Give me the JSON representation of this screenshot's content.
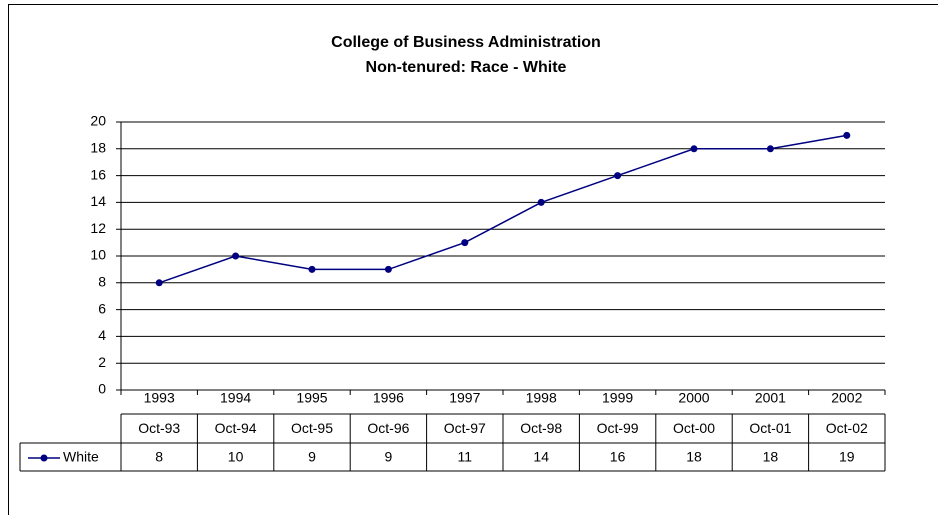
{
  "chart_data": {
    "type": "line",
    "title": "College of Business Administration",
    "subtitle": "Non-tenured: Race - White",
    "categories": [
      "1993",
      "1994",
      "1995",
      "1996",
      "1997",
      "1998",
      "1999",
      "2000",
      "2001",
      "2002"
    ],
    "data_table_labels": [
      "Oct-93",
      "Oct-94",
      "Oct-95",
      "Oct-96",
      "Oct-97",
      "Oct-98",
      "Oct-99",
      "Oct-00",
      "Oct-01",
      "Oct-02"
    ],
    "series": [
      {
        "name": "White",
        "color": "#000080",
        "values": [
          8,
          10,
          9,
          9,
          11,
          14,
          16,
          18,
          18,
          19
        ]
      }
    ],
    "ylim": [
      0,
      20
    ],
    "yticks": [
      0,
      2,
      4,
      6,
      8,
      10,
      12,
      14,
      16,
      18,
      20
    ],
    "grid": true
  }
}
